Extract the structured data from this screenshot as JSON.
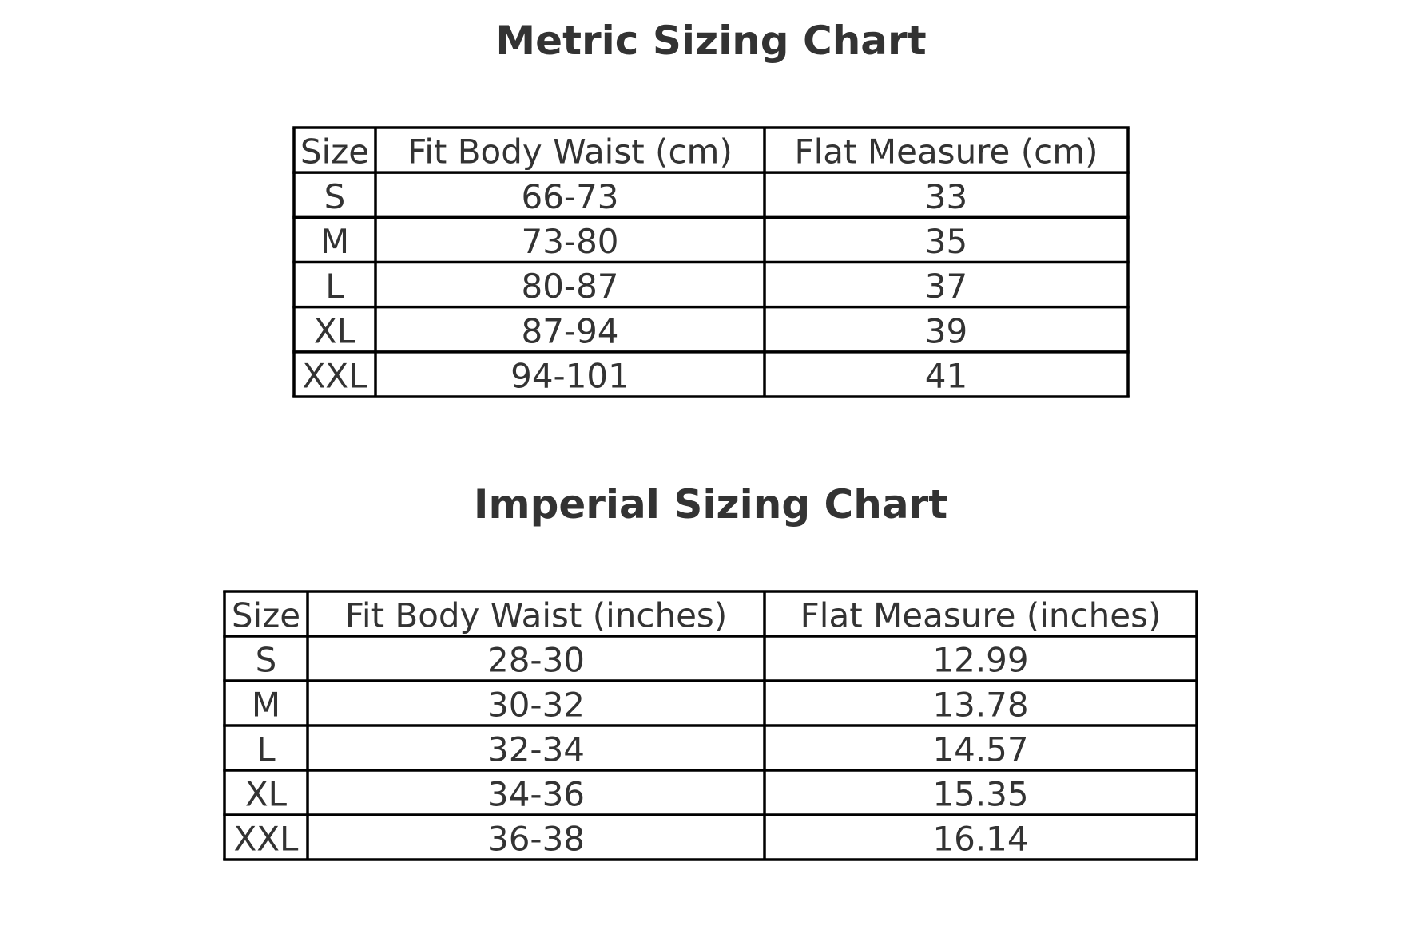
{
  "metric": {
    "title": "Metric Sizing Chart",
    "header": [
      "Size",
      "Fit Body Waist (cm)",
      "Flat Measure (cm)"
    ],
    "rows": [
      [
        "S",
        "66-73",
        33
      ],
      [
        "M",
        "73-80",
        35
      ],
      [
        "L",
        "80-87",
        37
      ],
      [
        "XL",
        "87-94",
        39
      ],
      [
        "XXL",
        "94-101",
        41
      ]
    ]
  },
  "imperial": {
    "title": "Imperial Sizing Chart",
    "header": [
      "Size",
      "Fit Body Waist (inches)",
      "Flat Measure (inches)"
    ],
    "rows": [
      [
        "S",
        "28-30",
        12.99
      ],
      [
        "M",
        "30-32",
        13.78
      ],
      [
        "L",
        "32-34",
        14.57
      ],
      [
        "XL",
        "34-36",
        15.35
      ],
      [
        "XXL",
        "36-38",
        16.14
      ]
    ]
  }
}
